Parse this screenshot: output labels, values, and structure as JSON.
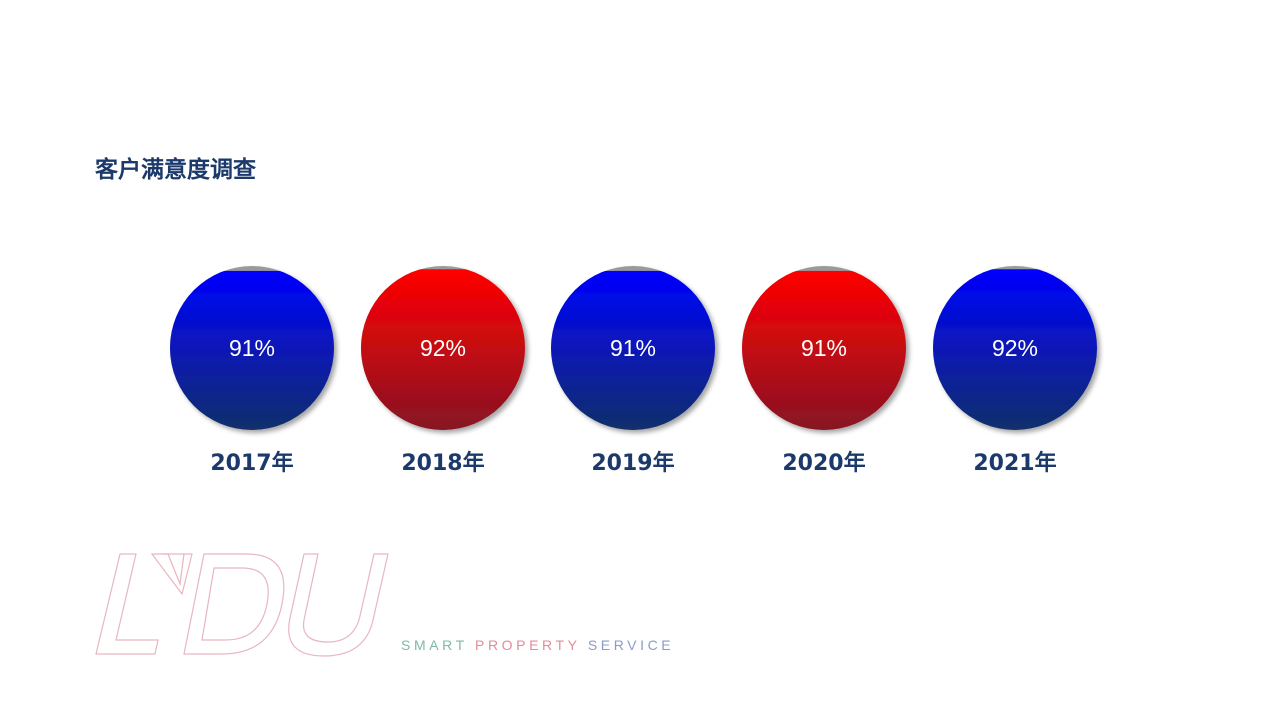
{
  "title": "客户满意度调查",
  "chart_data": {
    "type": "bar",
    "categories": [
      "2017年",
      "2018年",
      "2019年",
      "2020年",
      "2021年"
    ],
    "values": [
      91,
      92,
      91,
      91,
      92
    ],
    "value_labels": [
      "91%",
      "92%",
      "91%",
      "91%",
      "92%"
    ],
    "unit": "%",
    "ylim": [
      0,
      100
    ],
    "series_colors": [
      "blue",
      "red",
      "blue",
      "red",
      "blue"
    ]
  },
  "colors": {
    "title": "#1b3a6b",
    "blue_top": "#0000ff",
    "blue_bottom": "#12306a",
    "red_top": "#ff0000",
    "red_bottom": "#861424",
    "empty_cap": "#9a9a9a",
    "logo_outline": "#e8b6c0"
  },
  "logo": {
    "wordmark": "LVDU",
    "tagline_words": [
      {
        "text": "SMART",
        "color": "#7fb9a4"
      },
      {
        "text": "PROPERTY",
        "color": "#e48a9c"
      },
      {
        "text": "SERVICE",
        "color": "#8a9cc6"
      }
    ]
  }
}
